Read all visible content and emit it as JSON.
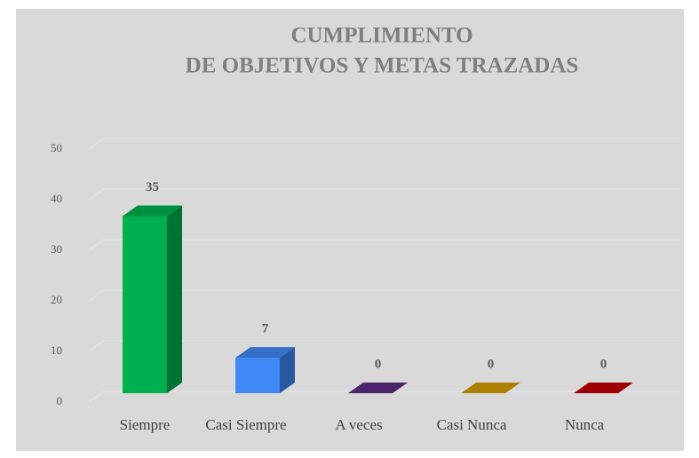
{
  "chart_data": {
    "type": "bar3d",
    "title": "CUMPLIMIENTO",
    "subtitle": "DE OBJETIVOS Y METAS TRAZADAS",
    "categories": [
      "Siempre",
      "Casi Siempre",
      "A veces",
      "Casi Nunca",
      "Nunca"
    ],
    "values": [
      35,
      7,
      0,
      0,
      0
    ],
    "colors": [
      "#00b050",
      "#3f88f5",
      "#5b2c82",
      "#d09c00",
      "#c00000"
    ],
    "ylim": [
      0,
      50
    ],
    "yticks": [
      0,
      10,
      20,
      30,
      40,
      50
    ],
    "grid": true,
    "data_labels": true
  }
}
